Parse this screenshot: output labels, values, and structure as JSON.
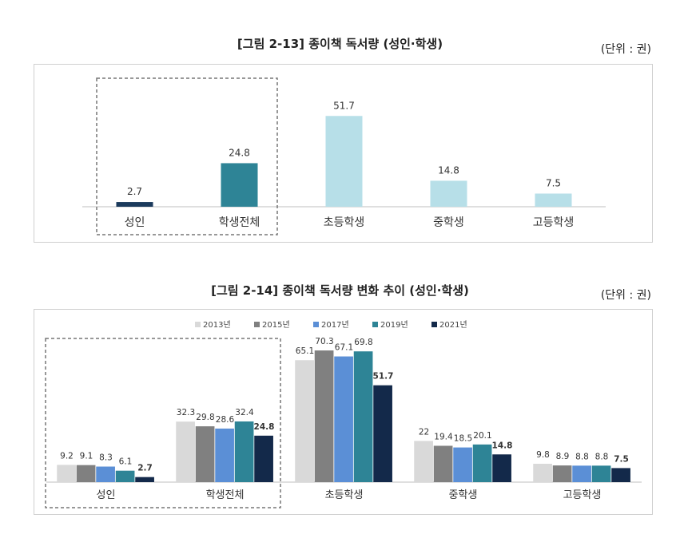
{
  "figures": [
    {
      "title": "[그림 2-13] 종이책 독서량 (성인·학생)",
      "unit": "(단위 : 권)"
    },
    {
      "title": "[그림 2-14] 종이책 독서량 변화 추이 (성인·학생)",
      "unit": "(단위 : 권)"
    }
  ],
  "chart_data": [
    {
      "type": "bar",
      "title": "[그림 2-13] 종이책 독서량 (성인·학생)",
      "categories": [
        "성인",
        "학생전체",
        "초등학생",
        "중학생",
        "고등학생"
      ],
      "values": [
        2.7,
        24.8,
        51.7,
        14.8,
        7.5
      ],
      "colors": [
        "#1b3a5c",
        "#2e8496",
        "#b7dfe8",
        "#b7dfe8",
        "#b7dfe8"
      ],
      "ylim": [
        0,
        60
      ],
      "grid": false,
      "highlight_box": [
        "성인",
        "학생전체"
      ]
    },
    {
      "type": "bar",
      "title": "[그림 2-14] 종이책 독서량 변화 추이 (성인·학생)",
      "categories": [
        "성인",
        "학생전체",
        "초등학생",
        "중학생",
        "고등학생"
      ],
      "series": [
        {
          "name": "2013년",
          "color": "#d9d9d9",
          "values": [
            9.2,
            32.3,
            65.1,
            22,
            9.8
          ]
        },
        {
          "name": "2015년",
          "color": "#808080",
          "values": [
            9.1,
            29.8,
            70.3,
            19.4,
            8.9
          ]
        },
        {
          "name": "2017년",
          "color": "#5b8fd6",
          "values": [
            8.3,
            28.6,
            67.1,
            18.5,
            8.8
          ]
        },
        {
          "name": "2019년",
          "color": "#2e8496",
          "values": [
            6.1,
            32.4,
            69.8,
            20.1,
            8.8
          ]
        },
        {
          "name": "2021년",
          "color": "#13294a",
          "values": [
            2.7,
            24.8,
            51.7,
            14.8,
            7.5
          ]
        }
      ],
      "ylim": [
        0,
        75
      ],
      "grid": false,
      "legend": "top-center",
      "highlight_box": [
        "성인",
        "학생전체"
      ]
    }
  ]
}
